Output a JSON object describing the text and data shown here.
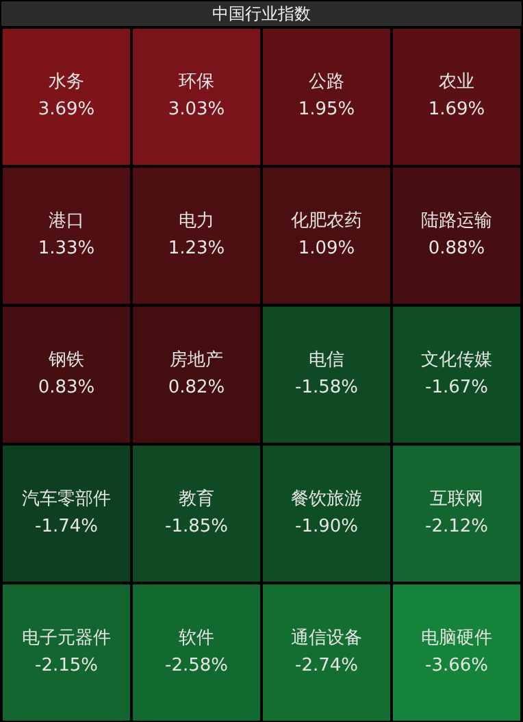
{
  "chart_data": {
    "type": "other",
    "title": "中国行业指数",
    "categories": [
      "水务",
      "环保",
      "公路",
      "农业",
      "港口",
      "电力",
      "化肥农药",
      "陆路运输",
      "钢铁",
      "房地产",
      "电信",
      "文化传媒",
      "汽车零部件",
      "教育",
      "餐饮旅游",
      "互联网",
      "电子元器件",
      "软件",
      "通信设备",
      "电脑硬件"
    ],
    "values": [
      3.69,
      3.03,
      1.95,
      1.69,
      1.33,
      1.23,
      1.09,
      0.88,
      0.83,
      0.82,
      -1.58,
      -1.67,
      -1.74,
      -1.85,
      -1.9,
      -2.12,
      -2.15,
      -2.58,
      -2.74,
      -3.66
    ],
    "value_labels": [
      "3.69%",
      "3.03%",
      "1.95%",
      "1.69%",
      "1.33%",
      "1.23%",
      "1.09%",
      "0.88%",
      "0.83%",
      "0.82%",
      "-1.58%",
      "-1.67%",
      "-1.74%",
      "-1.85%",
      "-1.90%",
      "-2.12%",
      "-2.15%",
      "-2.58%",
      "-2.74%",
      "-3.66%"
    ],
    "colors": [
      "#7c141a",
      "#7a141a",
      "#5e1015",
      "#5a1014",
      "#4f0f13",
      "#4d0f12",
      "#4b0f12",
      "#460e11",
      "#450e11",
      "#440e11",
      "#0f4a24",
      "#0f4d25",
      "#0e3f21",
      "#0f4a24",
      "#0f4d25",
      "#13662f",
      "#13662f",
      "#136a30",
      "#136f31",
      "#15843a"
    ]
  }
}
